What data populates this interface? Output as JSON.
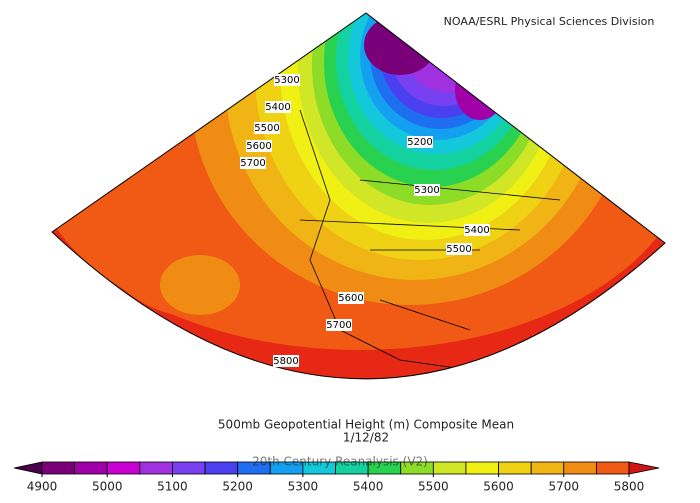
{
  "header": {
    "source": "NOAA/ESRL Physical Sciences Division"
  },
  "map": {
    "contour_labels": [
      "5300",
      "5400",
      "5500",
      "5600",
      "5700",
      "5200",
      "5300",
      "5400",
      "5500",
      "5600",
      "5700",
      "5800"
    ]
  },
  "caption": {
    "title": "500mb Geopotential Height (m) Composite Mean",
    "date": "1/12/82",
    "dataset": "20th Century Reanalysis (V2)"
  },
  "colorbar": {
    "ticks": [
      4900,
      5000,
      5100,
      5200,
      5300,
      5400,
      5500,
      5600,
      5700,
      5800
    ],
    "colors": [
      "#4a004a",
      "#7a007a",
      "#a000a8",
      "#c800d2",
      "#a030e0",
      "#7840f0",
      "#4a40f0",
      "#1e6ef0",
      "#14a0f0",
      "#14c8dc",
      "#14d2a0",
      "#28d250",
      "#8cdc28",
      "#d2e628",
      "#f0f014",
      "#f0d214",
      "#f0b414",
      "#f08c14",
      "#f05a14",
      "#d21414"
    ]
  }
}
